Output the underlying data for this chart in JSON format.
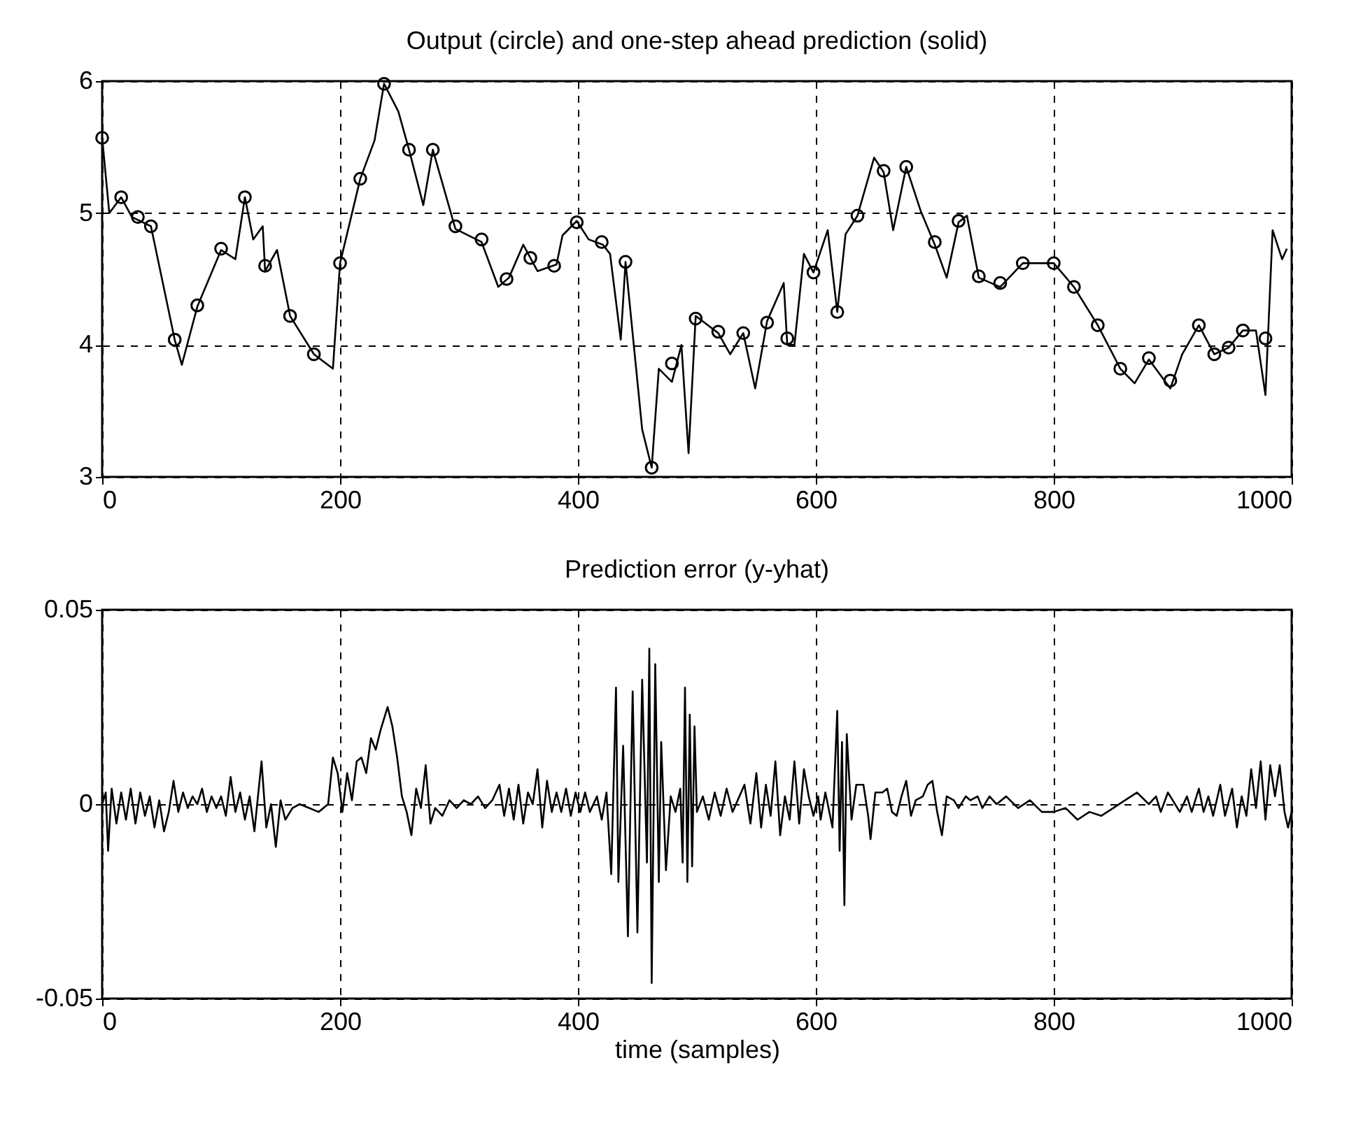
{
  "chart_data": [
    {
      "type": "line",
      "title": "Output (circle) and one-step ahead prediction (solid)",
      "xlim": [
        0,
        1000
      ],
      "xticks": [
        0,
        200,
        400,
        600,
        800,
        1000
      ],
      "ylim": [
        3,
        6
      ],
      "yticks": [
        3,
        4,
        5,
        6
      ],
      "grid": true,
      "series": [
        {
          "type": "line",
          "color": "#000000",
          "x": [
            0,
            6,
            16,
            25,
            41,
            61,
            67,
            80,
            100,
            112,
            120,
            127,
            135,
            137,
            147,
            158,
            178,
            194,
            200,
            217,
            229,
            237,
            249,
            258,
            270,
            278,
            297,
            319,
            333,
            342,
            354,
            366,
            382,
            387,
            399,
            409,
            421,
            427,
            436,
            440,
            454,
            462,
            468,
            479,
            487,
            493,
            499,
            518,
            528,
            539,
            549,
            559,
            573,
            576,
            582,
            590,
            598,
            610,
            618,
            625,
            635,
            649,
            657,
            665,
            676,
            688,
            700,
            710,
            720,
            727,
            737,
            755,
            774,
            800,
            817,
            837,
            856,
            868,
            880,
            898,
            908,
            922,
            935,
            947,
            959,
            970,
            978,
            984,
            992,
            996
          ],
          "values": [
            5.57,
            5.0,
            5.12,
            4.97,
            4.9,
            4.04,
            3.85,
            4.29,
            4.72,
            4.65,
            5.12,
            4.8,
            4.9,
            4.56,
            4.72,
            4.22,
            3.93,
            3.82,
            4.62,
            5.26,
            5.55,
            5.98,
            5.77,
            5.48,
            5.06,
            5.48,
            4.88,
            4.78,
            4.44,
            4.51,
            4.76,
            4.56,
            4.61,
            4.83,
            4.94,
            4.8,
            4.76,
            4.69,
            4.04,
            4.63,
            3.36,
            3.07,
            3.82,
            3.72,
            4.0,
            3.18,
            4.22,
            4.09,
            3.93,
            4.09,
            3.67,
            4.18,
            4.47,
            4.0,
            4.0,
            4.69,
            4.55,
            4.87,
            4.25,
            4.84,
            4.98,
            5.42,
            5.31,
            4.87,
            5.35,
            5.02,
            4.76,
            4.51,
            4.93,
            4.98,
            4.51,
            4.44,
            4.62,
            4.62,
            4.44,
            4.15,
            3.82,
            3.71,
            3.89,
            3.67,
            3.93,
            4.15,
            3.93,
            3.98,
            4.11,
            4.11,
            3.62,
            4.87,
            4.65,
            4.73
          ]
        },
        {
          "type": "scatter",
          "marker": "circle",
          "color": "#000000",
          "x": [
            0,
            16,
            30,
            41,
            61,
            80,
            100,
            120,
            137,
            158,
            178,
            200,
            217,
            237,
            258,
            278,
            297,
            319,
            340,
            360,
            380,
            399,
            420,
            440,
            462,
            479,
            499,
            518,
            539,
            559,
            576,
            598,
            618,
            635,
            657,
            676,
            700,
            720,
            737,
            755,
            774,
            800,
            817,
            837,
            856,
            880,
            898,
            922,
            935,
            947,
            959,
            978
          ],
          "values": [
            5.57,
            5.12,
            4.97,
            4.9,
            4.04,
            4.3,
            4.73,
            5.12,
            4.6,
            4.22,
            3.93,
            4.62,
            5.26,
            5.98,
            5.48,
            5.48,
            4.9,
            4.8,
            4.5,
            4.66,
            4.6,
            4.93,
            4.78,
            4.63,
            3.07,
            3.86,
            4.2,
            4.1,
            4.09,
            4.17,
            4.05,
            4.55,
            4.25,
            4.98,
            5.32,
            5.35,
            4.78,
            4.94,
            4.52,
            4.47,
            4.62,
            4.62,
            4.44,
            4.15,
            3.82,
            3.9,
            3.73,
            4.15,
            3.93,
            3.98,
            4.11,
            4.05
          ]
        }
      ]
    },
    {
      "type": "line",
      "title": "Prediction error (y-yhat)",
      "xlabel": "time (samples)",
      "xlim": [
        0,
        1000
      ],
      "xticks": [
        0,
        200,
        400,
        600,
        800,
        1000
      ],
      "ylim": [
        -0.05,
        0.05
      ],
      "yticks": [
        -0.05,
        0,
        0.05
      ],
      "grid": true,
      "series": [
        {
          "color": "#000000",
          "x": [
            0,
            3,
            5,
            8,
            12,
            16,
            20,
            24,
            28,
            32,
            36,
            40,
            44,
            48,
            52,
            56,
            60,
            64,
            68,
            72,
            76,
            80,
            84,
            88,
            92,
            96,
            100,
            104,
            108,
            112,
            116,
            120,
            124,
            128,
            134,
            138,
            142,
            146,
            150,
            154,
            160,
            166,
            174,
            182,
            190,
            194,
            198,
            202,
            206,
            210,
            214,
            218,
            222,
            226,
            230,
            234,
            240,
            244,
            248,
            252,
            256,
            260,
            264,
            268,
            272,
            276,
            280,
            286,
            292,
            298,
            304,
            310,
            316,
            322,
            328,
            334,
            338,
            342,
            346,
            350,
            354,
            358,
            362,
            366,
            370,
            374,
            378,
            382,
            386,
            390,
            394,
            398,
            402,
            406,
            410,
            416,
            420,
            424,
            428,
            432,
            434,
            438,
            442,
            446,
            450,
            454,
            458,
            460,
            462,
            465,
            468,
            470,
            474,
            478,
            482,
            486,
            488,
            490,
            492,
            494,
            496,
            498,
            500,
            505,
            510,
            515,
            520,
            525,
            530,
            540,
            545,
            550,
            554,
            558,
            562,
            566,
            570,
            574,
            578,
            582,
            586,
            590,
            594,
            598,
            602,
            604,
            608,
            614,
            618,
            620,
            622,
            624,
            626,
            630,
            634,
            640,
            644,
            646,
            650,
            656,
            660,
            664,
            668,
            672,
            676,
            680,
            684,
            690,
            694,
            698,
            702,
            706,
            710,
            716,
            720,
            726,
            730,
            736,
            740,
            746,
            752,
            760,
            770,
            780,
            790,
            800,
            810,
            820,
            830,
            840,
            850,
            860,
            870,
            880,
            886,
            890,
            896,
            900,
            906,
            912,
            916,
            922,
            926,
            930,
            934,
            940,
            944,
            950,
            954,
            958,
            962,
            966,
            970,
            974,
            978,
            982,
            986,
            990,
            994,
            997,
            1000
          ],
          "values": [
            0,
            0.003,
            -0.012,
            0.004,
            -0.005,
            0.003,
            -0.004,
            0.004,
            -0.005,
            0.003,
            -0.003,
            0.002,
            -0.006,
            0.001,
            -0.007,
            -0.002,
            0.006,
            -0.002,
            0.003,
            -0.001,
            0.002,
            0.0,
            0.004,
            -0.002,
            0.002,
            -0.001,
            0.002,
            -0.003,
            0.007,
            -0.002,
            0.003,
            -0.004,
            0.002,
            -0.007,
            0.011,
            -0.006,
            0.0,
            -0.011,
            0.001,
            -0.004,
            -0.001,
            0.0,
            -0.001,
            -0.002,
            0.0,
            0.012,
            0.008,
            -0.002,
            0.008,
            0.001,
            0.011,
            0.012,
            0.008,
            0.017,
            0.014,
            0.019,
            0.025,
            0.02,
            0.012,
            0.002,
            -0.002,
            -0.008,
            0.004,
            -0.001,
            0.01,
            -0.005,
            -0.001,
            -0.003,
            0.001,
            -0.001,
            0.001,
            0.0,
            0.002,
            -0.001,
            0.001,
            0.005,
            -0.003,
            0.004,
            -0.004,
            0.005,
            -0.005,
            0.003,
            0.0,
            0.009,
            -0.006,
            0.006,
            -0.002,
            0.003,
            -0.002,
            0.004,
            -0.003,
            0.003,
            -0.002,
            0.003,
            -0.002,
            0.002,
            -0.004,
            0.003,
            -0.018,
            0.03,
            -0.02,
            0.015,
            -0.034,
            0.029,
            -0.033,
            0.032,
            -0.015,
            0.04,
            -0.046,
            0.036,
            -0.02,
            0.016,
            -0.017,
            0.002,
            -0.002,
            0.004,
            -0.015,
            0.03,
            -0.02,
            0.023,
            -0.016,
            0.02,
            -0.002,
            0.002,
            -0.004,
            0.003,
            -0.003,
            0.004,
            -0.002,
            0.005,
            -0.005,
            0.008,
            -0.006,
            0.005,
            -0.003,
            0.011,
            -0.008,
            0.002,
            -0.004,
            0.011,
            -0.005,
            0.009,
            0.002,
            -0.003,
            0.002,
            -0.004,
            0.003,
            -0.006,
            0.024,
            -0.012,
            0.016,
            -0.026,
            0.018,
            -0.004,
            0.005,
            0.005,
            -0.003,
            -0.009,
            0.003,
            0.003,
            0.004,
            -0.002,
            -0.003,
            0.002,
            0.006,
            -0.003,
            0.001,
            0.002,
            0.005,
            0.006,
            -0.002,
            -0.008,
            0.002,
            0.001,
            -0.001,
            0.002,
            0.001,
            0.002,
            -0.001,
            0.002,
            0.0,
            0.002,
            -0.001,
            0.001,
            -0.002,
            -0.002,
            -0.001,
            -0.004,
            -0.002,
            -0.003,
            -0.001,
            0.001,
            0.003,
            0.0,
            0.002,
            -0.002,
            0.003,
            0.001,
            -0.002,
            0.002,
            -0.002,
            0.004,
            -0.002,
            0.002,
            -0.003,
            0.005,
            -0.003,
            0.004,
            -0.006,
            0.002,
            -0.003,
            0.009,
            -0.001,
            0.011,
            -0.004,
            0.01,
            0.002,
            0.01,
            -0.002,
            -0.006,
            -0.002
          ]
        }
      ]
    }
  ]
}
